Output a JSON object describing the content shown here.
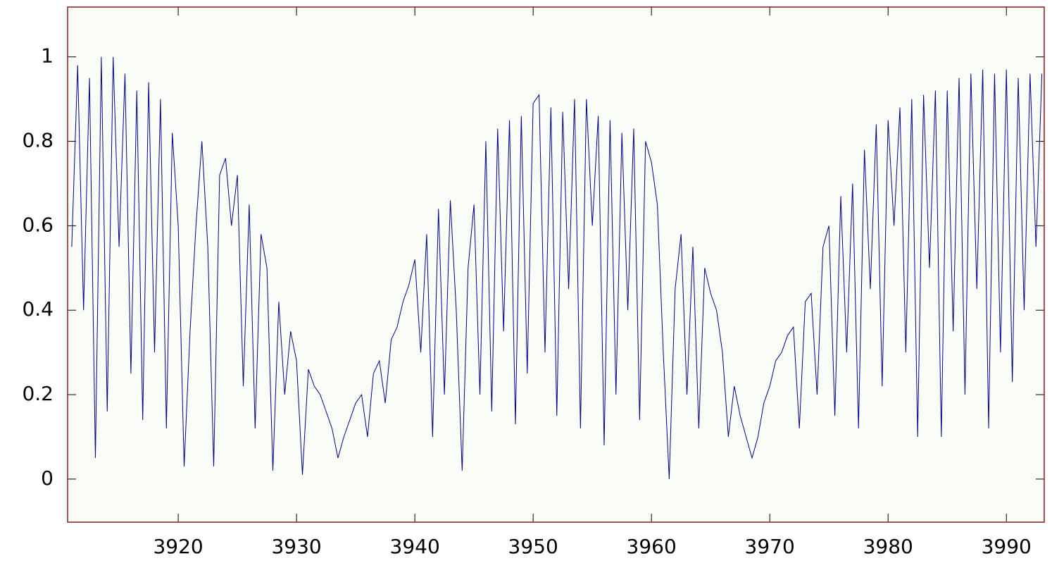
{
  "chart_data": {
    "type": "line",
    "x": [
      3911.0,
      3911.5,
      3912.0,
      3912.5,
      3913.0,
      3913.5,
      3914.0,
      3914.5,
      3915.0,
      3915.5,
      3916.0,
      3916.5,
      3917.0,
      3917.5,
      3918.0,
      3918.5,
      3919.0,
      3919.5,
      3920.0,
      3920.5,
      3921.0,
      3921.5,
      3922.0,
      3922.5,
      3923.0,
      3923.5,
      3924.0,
      3924.5,
      3925.0,
      3925.5,
      3926.0,
      3926.5,
      3927.0,
      3927.5,
      3928.0,
      3928.5,
      3929.0,
      3929.5,
      3930.0,
      3930.5,
      3931.0,
      3931.5,
      3932.0,
      3932.5,
      3933.0,
      3933.5,
      3934.0,
      3934.5,
      3935.0,
      3935.5,
      3936.0,
      3936.5,
      3937.0,
      3937.5,
      3938.0,
      3938.5,
      3939.0,
      3939.5,
      3940.0,
      3940.5,
      3941.0,
      3941.5,
      3942.0,
      3942.5,
      3943.0,
      3943.5,
      3944.0,
      3944.5,
      3945.0,
      3945.5,
      3946.0,
      3946.5,
      3947.0,
      3947.5,
      3948.0,
      3948.5,
      3949.0,
      3949.5,
      3950.0,
      3950.5,
      3951.0,
      3951.5,
      3952.0,
      3952.5,
      3953.0,
      3953.5,
      3954.0,
      3954.5,
      3955.0,
      3955.5,
      3956.0,
      3956.5,
      3957.0,
      3957.5,
      3958.0,
      3958.5,
      3959.0,
      3959.5,
      3960.0,
      3960.5,
      3961.0,
      3961.5,
      3962.0,
      3962.5,
      3963.0,
      3963.5,
      3964.0,
      3964.5,
      3965.0,
      3965.5,
      3966.0,
      3966.5,
      3967.0,
      3967.5,
      3968.0,
      3968.5,
      3969.0,
      3969.5,
      3970.0,
      3970.5,
      3971.0,
      3971.5,
      3972.0,
      3972.5,
      3973.0,
      3973.5,
      3974.0,
      3974.5,
      3975.0,
      3975.5,
      3976.0,
      3976.5,
      3977.0,
      3977.5,
      3978.0,
      3978.5,
      3979.0,
      3979.5,
      3980.0,
      3980.5,
      3981.0,
      3981.5,
      3982.0,
      3982.5,
      3983.0,
      3983.5,
      3984.0,
      3984.5,
      3985.0,
      3985.5,
      3986.0,
      3986.5,
      3987.0,
      3987.5,
      3988.0,
      3988.5,
      3989.0,
      3989.5,
      3990.0,
      3990.5,
      3991.0,
      3991.5,
      3992.0,
      3992.5,
      3993.0
    ],
    "series": [
      {
        "color": "#00008b",
        "values": [
          0.55,
          0.98,
          0.4,
          0.95,
          0.05,
          1.0,
          0.16,
          1.0,
          0.55,
          0.96,
          0.25,
          0.92,
          0.14,
          0.94,
          0.3,
          0.9,
          0.12,
          0.82,
          0.6,
          0.03,
          0.35,
          0.6,
          0.8,
          0.55,
          0.03,
          0.72,
          0.76,
          0.6,
          0.72,
          0.22,
          0.65,
          0.12,
          0.58,
          0.5,
          0.02,
          0.42,
          0.2,
          0.35,
          0.28,
          0.01,
          0.26,
          0.22,
          0.2,
          0.16,
          0.12,
          0.05,
          0.1,
          0.14,
          0.18,
          0.2,
          0.1,
          0.25,
          0.28,
          0.18,
          0.33,
          0.36,
          0.42,
          0.46,
          0.52,
          0.3,
          0.58,
          0.1,
          0.64,
          0.2,
          0.66,
          0.4,
          0.02,
          0.5,
          0.65,
          0.2,
          0.8,
          0.16,
          0.83,
          0.35,
          0.85,
          0.13,
          0.86,
          0.25,
          0.89,
          0.91,
          0.3,
          0.88,
          0.15,
          0.87,
          0.45,
          0.9,
          0.12,
          0.9,
          0.6,
          0.86,
          0.08,
          0.85,
          0.2,
          0.82,
          0.4,
          0.83,
          0.14,
          0.8,
          0.75,
          0.65,
          0.3,
          0.0,
          0.45,
          0.58,
          0.2,
          0.55,
          0.12,
          0.5,
          0.44,
          0.4,
          0.3,
          0.1,
          0.22,
          0.15,
          0.1,
          0.05,
          0.1,
          0.18,
          0.22,
          0.28,
          0.3,
          0.34,
          0.36,
          0.12,
          0.42,
          0.44,
          0.2,
          0.55,
          0.6,
          0.15,
          0.67,
          0.3,
          0.7,
          0.12,
          0.78,
          0.45,
          0.84,
          0.22,
          0.85,
          0.6,
          0.88,
          0.3,
          0.9,
          0.1,
          0.91,
          0.5,
          0.92,
          0.1,
          0.92,
          0.35,
          0.95,
          0.2,
          0.96,
          0.45,
          0.97,
          0.12,
          0.96,
          0.3,
          0.97,
          0.23,
          0.95,
          0.4,
          0.96,
          0.55,
          0.96
        ]
      }
    ],
    "xlim": [
      3910.65,
      3993.2
    ],
    "ylim": [
      -0.102,
      1.118
    ],
    "xticks": [
      3920,
      3930,
      3940,
      3950,
      3960,
      3970,
      3980,
      3990
    ],
    "yticks": [
      0,
      0.2,
      0.4,
      0.6,
      0.8,
      1
    ],
    "background": "#fafcf7",
    "frame_color": "#8b1a1a"
  }
}
